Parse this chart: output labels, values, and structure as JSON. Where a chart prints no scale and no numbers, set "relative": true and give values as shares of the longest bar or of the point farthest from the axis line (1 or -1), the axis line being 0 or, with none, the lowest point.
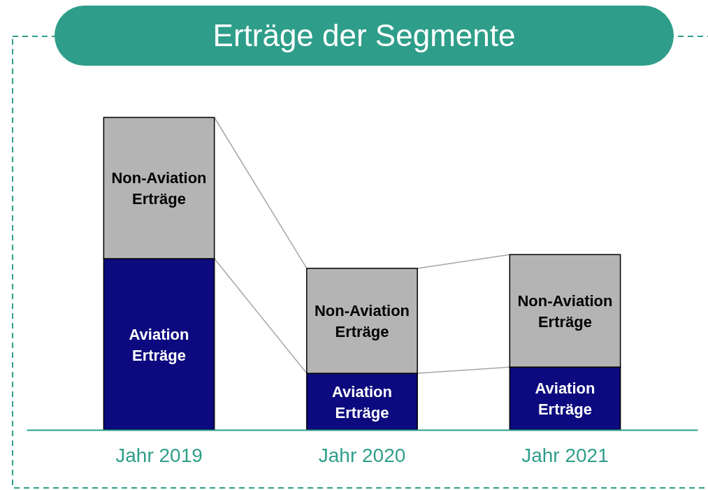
{
  "chart_data": {
    "type": "bar",
    "title": "Erträge der Segmente",
    "relative": true,
    "stacked": true,
    "legend": false,
    "categories": [
      "Jahr 2019",
      "Jahr 2020",
      "Jahr 2021"
    ],
    "series": [
      {
        "name": "Aviation Erträge",
        "color": "#0c0a7e",
        "values": [
          0.548,
          0.181,
          0.201
        ]
      },
      {
        "name": "Non-Aviation Erträge",
        "color": "#b4b4b4",
        "values": [
          0.452,
          0.336,
          0.36
        ]
      }
    ]
  }
}
